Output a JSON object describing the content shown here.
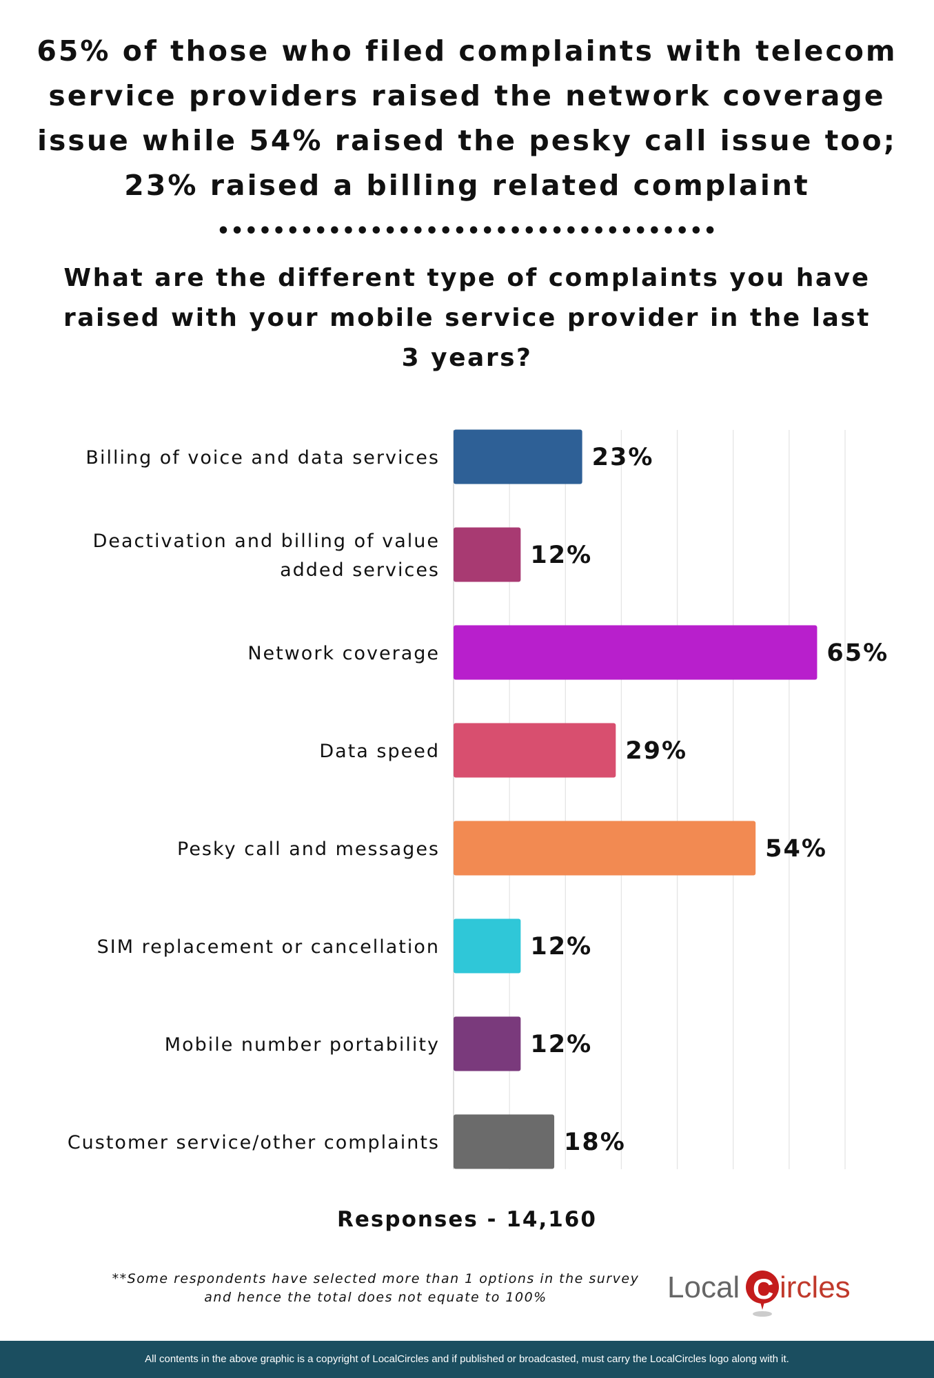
{
  "headline": [
    "65% of those who filed complaints with telecom",
    "service providers raised the network coverage",
    "issue while 54% raised the pesky call issue too;",
    "23% raised a billing related complaint"
  ],
  "divider": "••••••••••••••••••••••••••••••••••••",
  "question": [
    "What are the different type of complaints you have",
    "raised with your mobile service provider in the last",
    "3 years?"
  ],
  "chart_data": {
    "type": "bar",
    "orientation": "horizontal",
    "categories": [
      [
        "Billing of voice and data services"
      ],
      [
        "Deactivation and billing of value",
        "added services"
      ],
      [
        "Network coverage"
      ],
      [
        "Data speed"
      ],
      [
        "Pesky call and messages"
      ],
      [
        "SIM replacement or cancellation"
      ],
      [
        "Mobile number portability"
      ],
      [
        "Customer service/other complaints"
      ]
    ],
    "values": [
      23,
      12,
      65,
      29,
      54,
      12,
      12,
      18
    ],
    "value_labels": [
      "23%",
      "12%",
      "65%",
      "29%",
      "54%",
      "12%",
      "12%",
      "18%"
    ],
    "colors": [
      "#2e6096",
      "#a83a72",
      "#b81fcc",
      "#d84f6f",
      "#f28a52",
      "#2fc7d8",
      "#7a3a7c",
      "#6b6b6b"
    ],
    "xlim": [
      0,
      70
    ],
    "grid": true,
    "gridline_step": 10,
    "title": "",
    "xlabel": "",
    "ylabel": ""
  },
  "responses": "Responses - 14,160",
  "note": [
    "**Some respondents have selected more than 1 options in the survey",
    "and hence the total does not equate to 100%"
  ],
  "logo": {
    "text_left": "Local",
    "text_c": "C",
    "text_right": "ircles"
  },
  "footer": "All contents in the above graphic is a copyright of LocalCircles and if published or broadcasted, must carry the LocalCircles logo along with it."
}
